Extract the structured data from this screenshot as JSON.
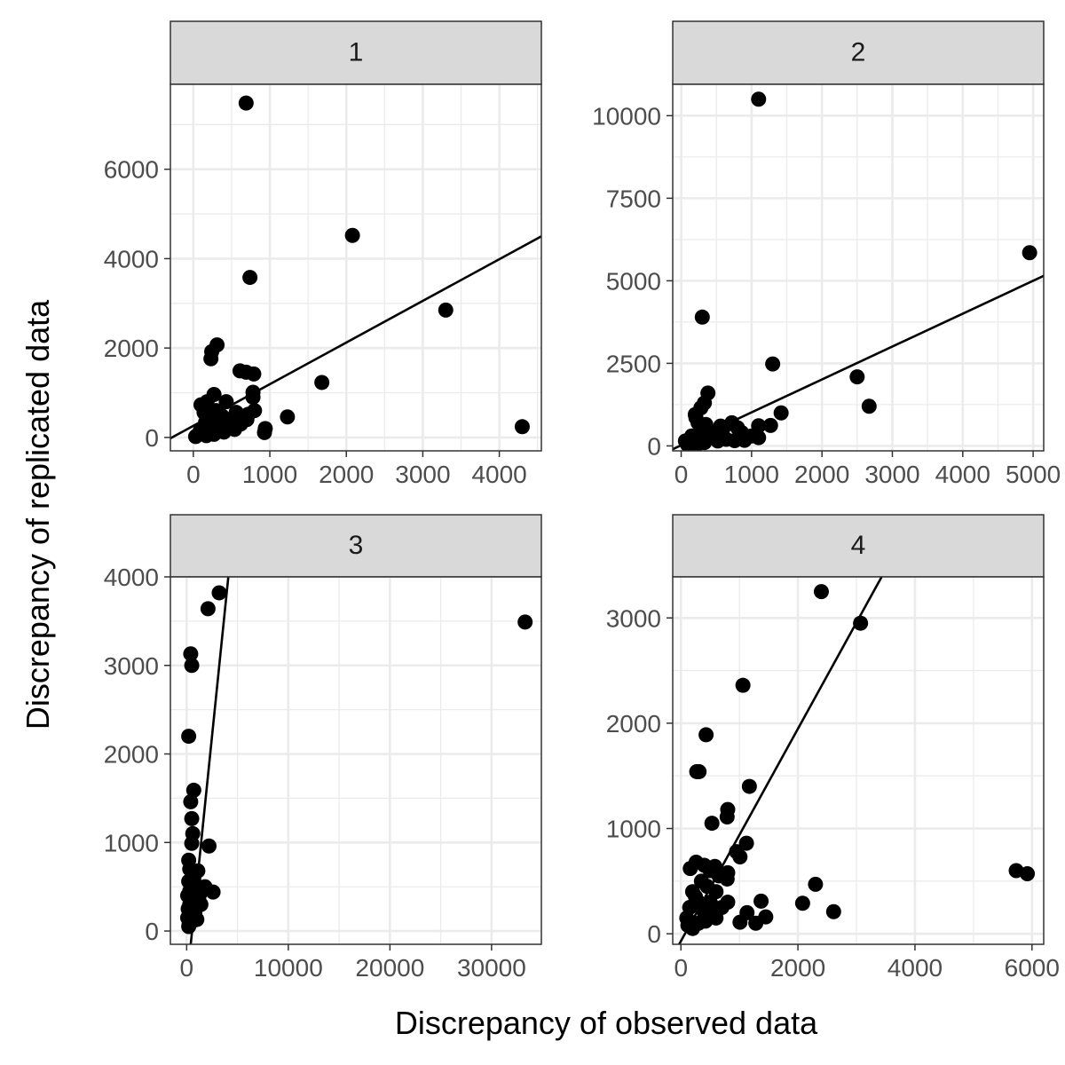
{
  "chart_data": {
    "type": "scatter",
    "xlabel": "Discrepancy of observed data",
    "ylabel": "Discrepancy of replicated data",
    "grid": true,
    "facets": [
      {
        "label": "1",
        "xlim": [
          -300,
          4550
        ],
        "ylim": [
          -300,
          7900
        ],
        "xticks": [
          0,
          1000,
          2000,
          3000,
          4000
        ],
        "yticks": [
          0,
          2000,
          4000,
          6000
        ],
        "fit": {
          "x": [
            -300,
            4550
          ],
          "y": [
            -20,
            4500
          ]
        },
        "points": [
          [
            690,
            7480
          ],
          [
            2080,
            4520
          ],
          [
            740,
            3580
          ],
          [
            3300,
            2850
          ],
          [
            310,
            2070
          ],
          [
            240,
            1920
          ],
          [
            230,
            1760
          ],
          [
            610,
            1490
          ],
          [
            690,
            1460
          ],
          [
            790,
            1420
          ],
          [
            1680,
            1230
          ],
          [
            780,
            1010
          ],
          [
            780,
            900
          ],
          [
            270,
            960
          ],
          [
            1230,
            460
          ],
          [
            940,
            200
          ],
          [
            930,
            110
          ],
          [
            4300,
            240
          ],
          [
            430,
            800
          ],
          [
            100,
            730
          ],
          [
            180,
            800
          ],
          [
            140,
            560
          ],
          [
            300,
            600
          ],
          [
            560,
            560
          ],
          [
            660,
            480
          ],
          [
            700,
            400
          ],
          [
            620,
            300
          ],
          [
            500,
            250
          ],
          [
            420,
            280
          ],
          [
            350,
            200
          ],
          [
            280,
            140
          ],
          [
            200,
            120
          ],
          [
            120,
            80
          ],
          [
            60,
            60
          ],
          [
            30,
            20
          ],
          [
            160,
            340
          ],
          [
            220,
            420
          ],
          [
            380,
            470
          ],
          [
            460,
            380
          ],
          [
            540,
            180
          ],
          [
            250,
            220
          ],
          [
            90,
            150
          ],
          [
            330,
            330
          ],
          [
            580,
            340
          ],
          [
            720,
            520
          ],
          [
            800,
            600
          ],
          [
            170,
            40
          ],
          [
            400,
            120
          ],
          [
            270,
            70
          ]
        ]
      },
      {
        "label": "2",
        "xlim": [
          -120,
          5150
        ],
        "ylim": [
          -150,
          10950
        ],
        "xticks": [
          0,
          1000,
          2000,
          3000,
          4000,
          5000
        ],
        "yticks": [
          0,
          2500,
          5000,
          7500,
          10000
        ],
        "fit": {
          "x": [
            -120,
            5150
          ],
          "y": [
            -100,
            5150
          ]
        },
        "points": [
          [
            1100,
            10500
          ],
          [
            4950,
            5850
          ],
          [
            300,
            3900
          ],
          [
            1300,
            2480
          ],
          [
            2500,
            2090
          ],
          [
            2670,
            1200
          ],
          [
            380,
            1600
          ],
          [
            1420,
            1000
          ],
          [
            1270,
            620
          ],
          [
            330,
            1300
          ],
          [
            200,
            950
          ],
          [
            240,
            700
          ],
          [
            1100,
            610
          ],
          [
            720,
            700
          ],
          [
            560,
            600
          ],
          [
            860,
            400
          ],
          [
            1000,
            300
          ],
          [
            1100,
            250
          ],
          [
            640,
            200
          ],
          [
            480,
            300
          ],
          [
            400,
            450
          ],
          [
            300,
            500
          ],
          [
            250,
            300
          ],
          [
            180,
            200
          ],
          [
            120,
            100
          ],
          [
            90,
            40
          ],
          [
            210,
            850
          ],
          [
            280,
            1150
          ],
          [
            350,
            650
          ],
          [
            420,
            350
          ],
          [
            520,
            150
          ],
          [
            760,
            160
          ],
          [
            900,
            170
          ],
          [
            150,
            300
          ],
          [
            60,
            150
          ],
          [
            330,
            100
          ],
          [
            230,
            50
          ],
          [
            600,
            550
          ],
          [
            800,
            550
          ]
        ]
      },
      {
        "label": "3",
        "xlim": [
          -1600,
          34900
        ],
        "ylim": [
          -150,
          4000
        ],
        "xticks": [
          0,
          10000,
          20000,
          30000
        ],
        "yticks": [
          0,
          1000,
          2000,
          3000,
          4000
        ],
        "fit": {
          "x": [
            400,
            4100
          ],
          "y": [
            -150,
            4000
          ]
        },
        "points": [
          [
            33300,
            3490
          ],
          [
            3200,
            3820
          ],
          [
            2100,
            3640
          ],
          [
            400,
            3130
          ],
          [
            500,
            3000
          ],
          [
            200,
            2200
          ],
          [
            700,
            1590
          ],
          [
            400,
            1460
          ],
          [
            500,
            1270
          ],
          [
            600,
            1100
          ],
          [
            500,
            990
          ],
          [
            2200,
            960
          ],
          [
            200,
            800
          ],
          [
            300,
            700
          ],
          [
            1100,
            680
          ],
          [
            700,
            600
          ],
          [
            200,
            560
          ],
          [
            400,
            520
          ],
          [
            1800,
            500
          ],
          [
            2600,
            440
          ],
          [
            900,
            400
          ],
          [
            1200,
            350
          ],
          [
            300,
            300
          ],
          [
            600,
            250
          ],
          [
            800,
            200
          ],
          [
            100,
            150
          ],
          [
            400,
            100
          ],
          [
            200,
            50
          ],
          [
            1000,
            130
          ],
          [
            1400,
            300
          ],
          [
            100,
            400
          ],
          [
            300,
            450
          ],
          [
            500,
            380
          ],
          [
            150,
            250
          ],
          [
            700,
            120
          ],
          [
            250,
            80
          ],
          [
            600,
            460
          ],
          [
            900,
            520
          ],
          [
            1300,
            420
          ]
        ]
      },
      {
        "label": "4",
        "xlim": [
          -140,
          6200
        ],
        "ylim": [
          -100,
          3390
        ],
        "xticks": [
          0,
          2000,
          4000,
          6000
        ],
        "yticks": [
          0,
          1000,
          2000,
          3000
        ],
        "fit": {
          "x": [
            -30,
            3430
          ],
          "y": [
            -100,
            3390
          ]
        },
        "points": [
          [
            2400,
            3250
          ],
          [
            3070,
            2950
          ],
          [
            1060,
            2360
          ],
          [
            430,
            1890
          ],
          [
            270,
            1540
          ],
          [
            310,
            1540
          ],
          [
            1170,
            1400
          ],
          [
            800,
            1180
          ],
          [
            790,
            1110
          ],
          [
            530,
            1050
          ],
          [
            1120,
            860
          ],
          [
            1010,
            730
          ],
          [
            950,
            780
          ],
          [
            260,
            680
          ],
          [
            400,
            650
          ],
          [
            580,
            640
          ],
          [
            160,
            620
          ],
          [
            800,
            580
          ],
          [
            790,
            520
          ],
          [
            2300,
            470
          ],
          [
            2080,
            290
          ],
          [
            2610,
            210
          ],
          [
            1370,
            310
          ],
          [
            1130,
            200
          ],
          [
            1450,
            160
          ],
          [
            1280,
            100
          ],
          [
            1010,
            110
          ],
          [
            5730,
            600
          ],
          [
            5920,
            570
          ],
          [
            600,
            400
          ],
          [
            500,
            300
          ],
          [
            400,
            200
          ],
          [
            300,
            100
          ],
          [
            200,
            50
          ],
          [
            100,
            150
          ],
          [
            700,
            250
          ],
          [
            450,
            450
          ],
          [
            350,
            500
          ],
          [
            250,
            350
          ],
          [
            150,
            250
          ],
          [
            600,
            150
          ],
          [
            800,
            300
          ],
          [
            650,
            550
          ],
          [
            300,
            300
          ],
          [
            200,
            400
          ],
          [
            500,
            600
          ],
          [
            120,
            80
          ],
          [
            420,
            120
          ],
          [
            550,
            220
          ]
        ]
      }
    ]
  }
}
